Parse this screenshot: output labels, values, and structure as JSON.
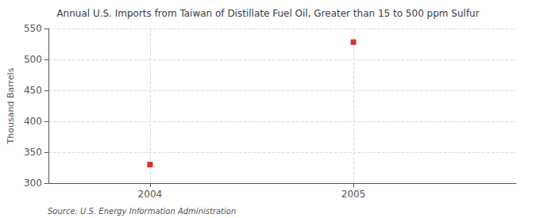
{
  "chart_data": {
    "type": "scatter",
    "title": "Annual U.S. Imports from Taiwan of Distillate Fuel Oil, Greater than 15 to 500 ppm Sulfur",
    "ylabel": "Thousand Barrels",
    "x": [
      2004,
      2005
    ],
    "values": [
      330,
      528
    ],
    "color": "#cc0000",
    "marker": "square",
    "xlim": [
      2003.5,
      2005.8
    ],
    "xticks": [
      2004,
      2005
    ],
    "ylim": [
      300,
      550
    ],
    "yticks": [
      300,
      350,
      400,
      450,
      500,
      550
    ],
    "grid": true,
    "annotations": [
      "Source: U.S. Energy Information Administration"
    ]
  }
}
